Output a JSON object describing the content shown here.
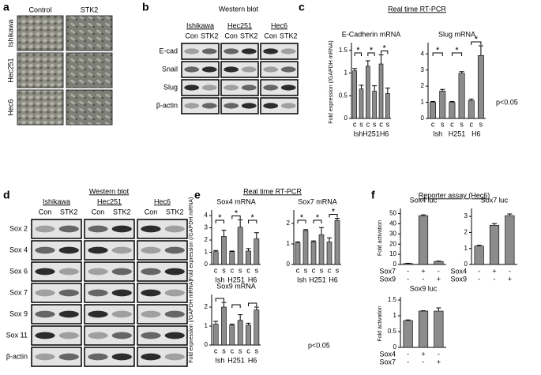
{
  "figure": {
    "a": {
      "label": "a",
      "columns": [
        "Control",
        "STK2"
      ],
      "rows": [
        "Ishikawa",
        "Hec251",
        "Hec6"
      ]
    },
    "b": {
      "label": "b",
      "title": "Western blot",
      "lines": [
        {
          "name": "Ishikawa",
          "lanes": [
            "Con",
            "STK2"
          ]
        },
        {
          "name": "Hec251",
          "lanes": [
            "Con",
            "STK2"
          ]
        },
        {
          "name": "Hec6",
          "lanes": [
            "Con",
            "STK2"
          ]
        }
      ],
      "rows": [
        "E-cad",
        "Snail",
        "Slug",
        "β-actin"
      ]
    },
    "c": {
      "label": "c",
      "title": "Real time RT-PCR",
      "note": "p<0.05"
    },
    "d": {
      "label": "d",
      "title": "Western blot",
      "lines": [
        {
          "name": "Ishikawa",
          "lanes": [
            "Con",
            "STK2"
          ]
        },
        {
          "name": "Hec251",
          "lanes": [
            "Con",
            "STK2"
          ]
        },
        {
          "name": "Hec6",
          "lanes": [
            "Con",
            "STK2"
          ]
        }
      ],
      "rows": [
        "Sox 2",
        "Sox 4",
        "Sox 6",
        "Sox 7",
        "Sox 9",
        "Sox 11",
        "β-actin"
      ]
    },
    "e": {
      "label": "e",
      "title": "Real time RT-PCR",
      "note": "p<0.05"
    },
    "f": {
      "label": "f",
      "title": "Reporter assay (Hec6)"
    }
  },
  "chart_data": [
    {
      "type": "bar",
      "title": "E-Cadherin mRNA",
      "ylabel": "Fold expression (/GAPDH mRNA)",
      "categories": [
        "c",
        "s",
        "c",
        "s",
        "c",
        "s"
      ],
      "groups": [
        "Ish",
        "H251",
        "H6"
      ],
      "values": [
        1.05,
        0.65,
        1.15,
        0.6,
        1.2,
        0.55
      ],
      "errors": [
        0.05,
        0.08,
        0.12,
        0.12,
        0.2,
        0.12
      ],
      "color": "#8c8c8c",
      "ylim": [
        0,
        1.6
      ],
      "yticks": [
        0,
        0.5,
        1,
        1.5
      ],
      "brackets": true,
      "significance": [
        "*",
        "*",
        "*"
      ]
    },
    {
      "type": "bar",
      "title": "Slug mRNA",
      "categories": [
        "c",
        "s",
        "c",
        "s",
        "c",
        "s"
      ],
      "groups": [
        "Ish",
        "H251",
        "H6"
      ],
      "values": [
        1.0,
        1.7,
        1.0,
        2.8,
        1.1,
        3.9
      ],
      "errors": [
        0.05,
        0.1,
        0.05,
        0.1,
        0.1,
        0.6
      ],
      "color": "#8c8c8c",
      "ylim": [
        0,
        4.5
      ],
      "yticks": [
        0,
        1,
        2,
        3,
        4
      ],
      "brackets": true,
      "significance": [
        "*",
        "*",
        "*"
      ]
    },
    {
      "type": "bar",
      "title": "Sox4 mRNA",
      "ylabel": "Fold expression (/GAPDH mRNA)",
      "categories": [
        "c",
        "s",
        "c",
        "s",
        "c",
        "s"
      ],
      "groups": [
        "Ish",
        "H251",
        "H6"
      ],
      "values": [
        1.05,
        2.3,
        1.05,
        3.05,
        1.1,
        2.1
      ],
      "errors": [
        0.1,
        0.5,
        0.05,
        0.6,
        0.2,
        0.5
      ],
      "color": "#8c8c8c",
      "ylim": [
        0,
        4.2
      ],
      "yticks": [
        0,
        1,
        2,
        3,
        4
      ],
      "brackets": true,
      "significance": [
        "*",
        "*",
        "*"
      ]
    },
    {
      "type": "bar",
      "title": "Sox7 mRNA",
      "categories": [
        "c",
        "s",
        "c",
        "s",
        "c",
        "s"
      ],
      "groups": [
        "Ish",
        "H251",
        "H6"
      ],
      "values": [
        1.05,
        1.65,
        1.1,
        1.45,
        1.1,
        2.15
      ],
      "errors": [
        0.05,
        0.05,
        0.05,
        0.35,
        0.2,
        0.1
      ],
      "color": "#8c8c8c",
      "ylim": [
        0,
        2.5
      ],
      "yticks": [
        0,
        1,
        2
      ],
      "brackets": true,
      "significance": [
        "*",
        "*",
        "*"
      ]
    },
    {
      "type": "bar",
      "title": "Sox9 mRNA",
      "ylabel": "Fold expression (/GAPDH mRNA)",
      "categories": [
        "c",
        "s",
        "c",
        "s",
        "c",
        "s"
      ],
      "groups": [
        "Ish",
        "H251",
        "H6"
      ],
      "values": [
        1.1,
        2.0,
        1.05,
        1.3,
        1.05,
        1.85
      ],
      "errors": [
        0.15,
        0.25,
        0.05,
        0.3,
        0.1,
        0.15
      ],
      "color": "#8c8c8c",
      "ylim": [
        0,
        2.5
      ],
      "yticks": [
        0,
        1,
        2
      ],
      "brackets": true
    },
    {
      "type": "bar",
      "title": "Sox4 luc",
      "ylabel": "Fold activation",
      "values": [
        1,
        48,
        3
      ],
      "errors": [
        0.3,
        0.8,
        0.3
      ],
      "color": "#8c8c8c",
      "ylim": [
        0,
        52
      ],
      "yticks": [
        0,
        10,
        20,
        30,
        40,
        50
      ],
      "treatments": [
        {
          "name": "Sox7",
          "signs": [
            "-",
            "+",
            "-"
          ]
        },
        {
          "name": "Sox9",
          "signs": [
            "-",
            "-",
            "+"
          ]
        }
      ]
    },
    {
      "type": "bar",
      "title": "Sox7 luc",
      "values": [
        1.15,
        2.45,
        3.05
      ],
      "errors": [
        0.05,
        0.1,
        0.1
      ],
      "color": "#8c8c8c",
      "ylim": [
        0,
        3.3
      ],
      "yticks": [
        0,
        1,
        2,
        3
      ],
      "treatments": [
        {
          "name": "Sox4",
          "signs": [
            "-",
            "+",
            "-"
          ]
        },
        {
          "name": "Sox9",
          "signs": [
            "-",
            "-",
            "+"
          ]
        }
      ]
    },
    {
      "type": "bar",
      "title": "Sox9 luc",
      "ylabel": "Fold activation",
      "values": [
        0.85,
        1.15,
        1.15
      ],
      "errors": [
        0.02,
        0.01,
        0.1
      ],
      "color": "#8c8c8c",
      "ylim": [
        0,
        1.5
      ],
      "yticks": [
        0,
        0.5,
        1,
        1.5
      ],
      "treatments": [
        {
          "name": "Sox4",
          "signs": [
            "-",
            "+",
            "-"
          ]
        },
        {
          "name": "Sox7",
          "signs": [
            "-",
            "-",
            "+"
          ]
        }
      ]
    }
  ]
}
